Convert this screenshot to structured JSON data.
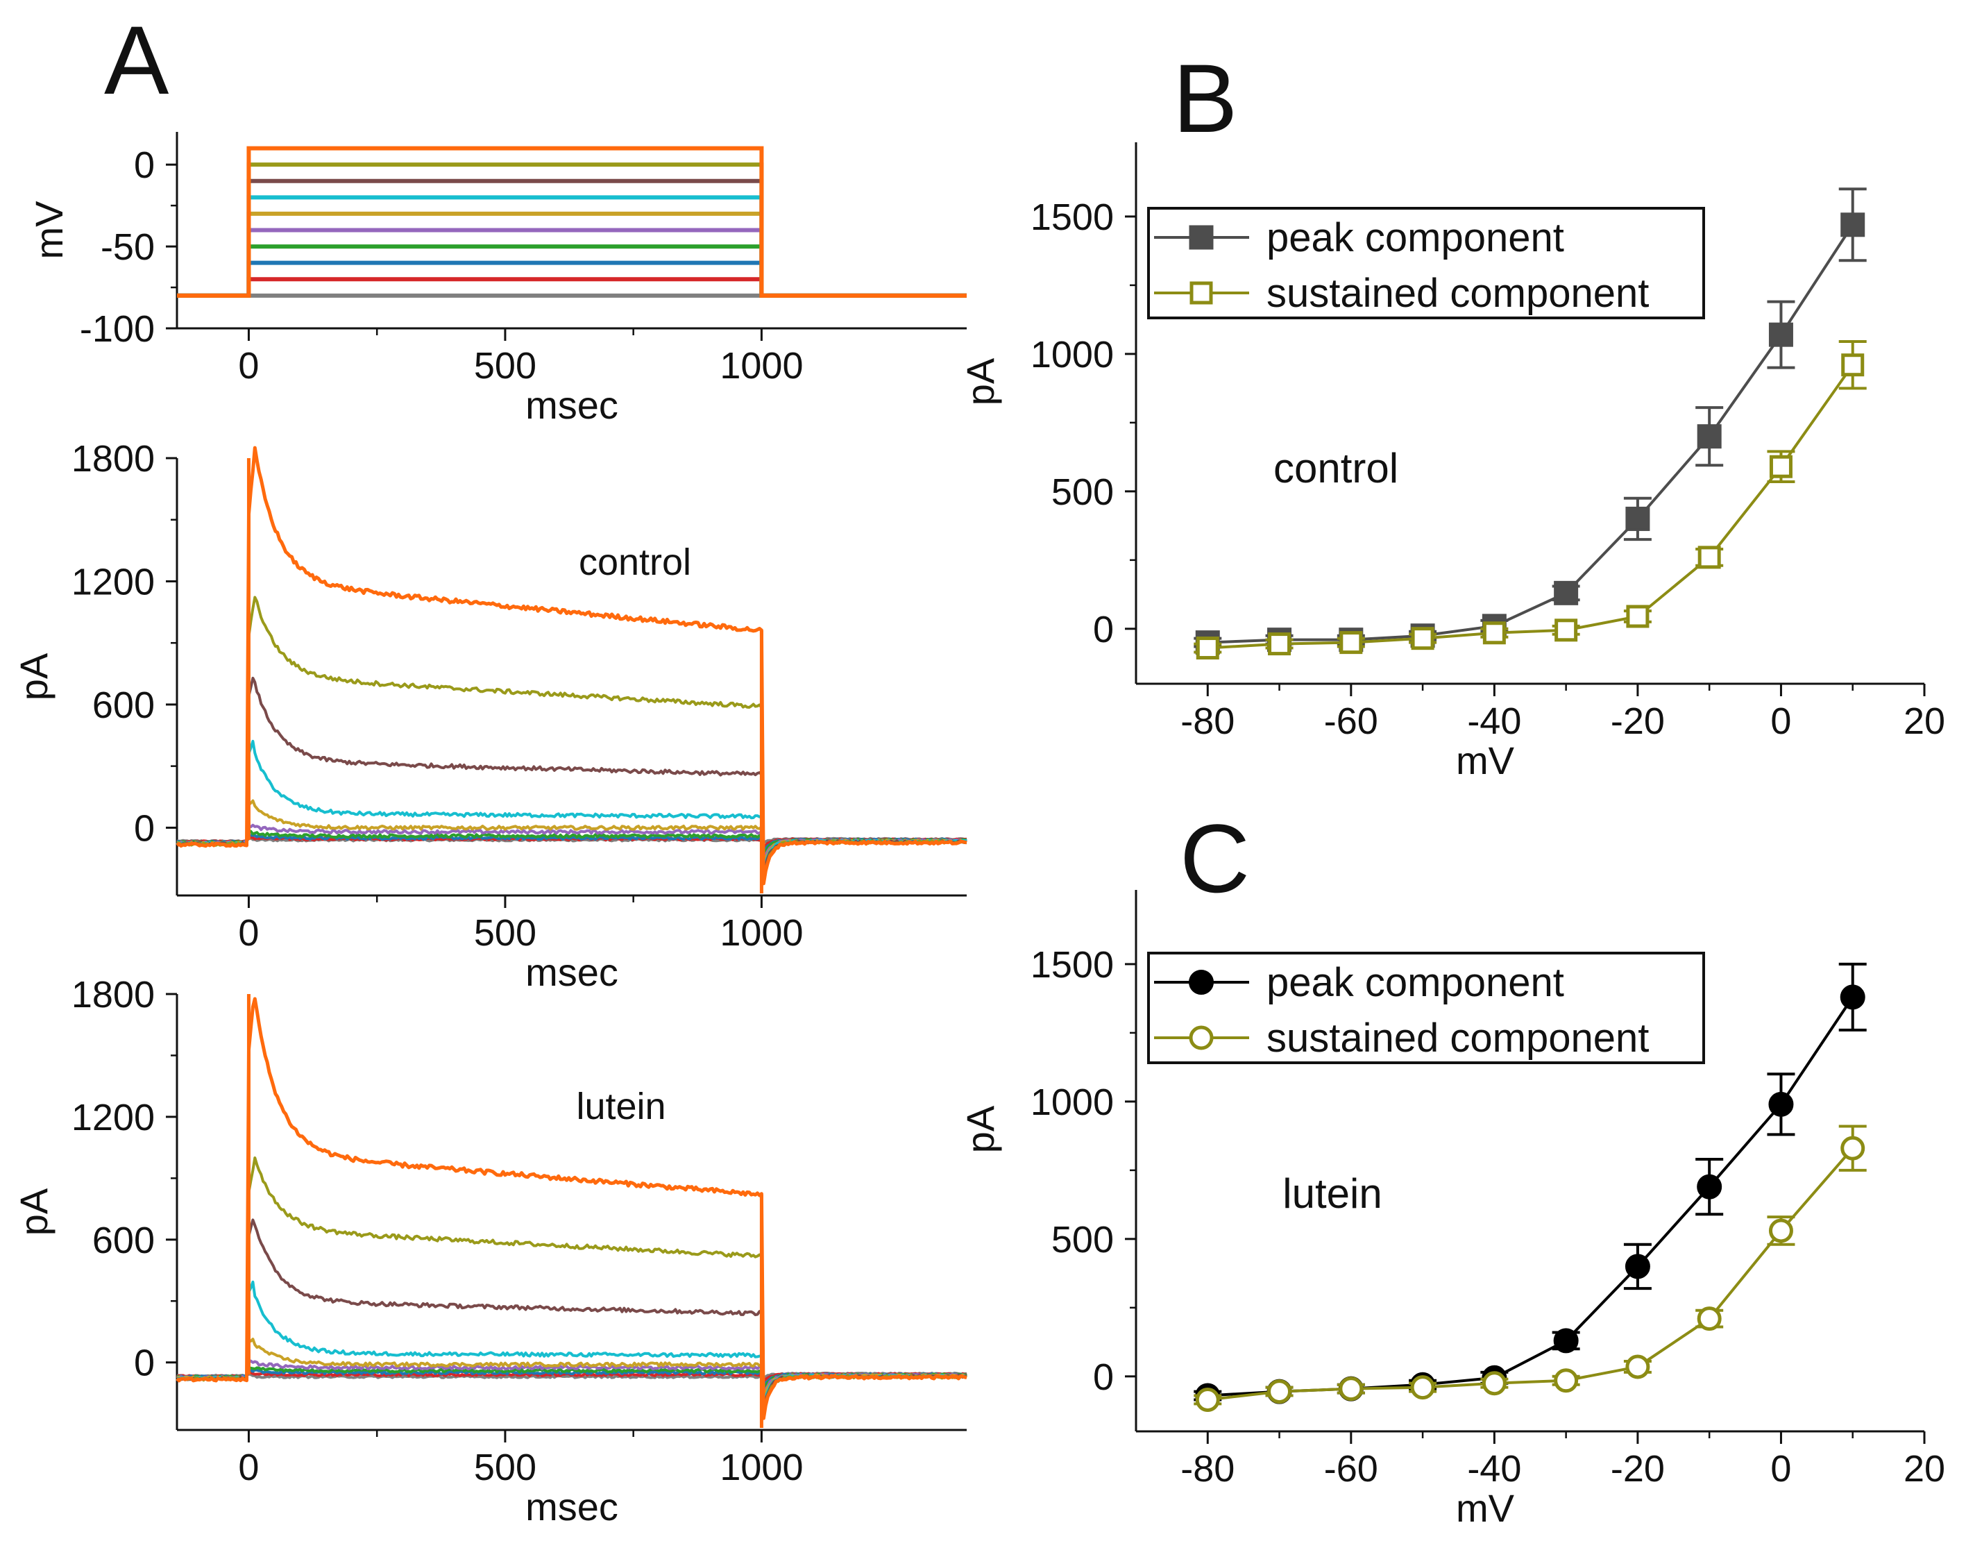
{
  "panel_letters": {
    "A": "A",
    "B": "B",
    "C": "C"
  },
  "chart_data": [
    {
      "id": "A1",
      "type": "line",
      "title": "",
      "xlabel": "msec",
      "ylabel": "mV",
      "xlim": [
        -140,
        1400
      ],
      "ylim": [
        -100,
        20
      ],
      "xticks": [
        0,
        500,
        1000
      ],
      "yticks": [
        0,
        -50,
        -100
      ],
      "xtick_labels": [
        "0",
        "500",
        "1000"
      ],
      "ytick_labels": [
        "0",
        "-50",
        "-100"
      ],
      "holding_mV": -80,
      "step_start_ms": 0,
      "step_end_ms": 1000,
      "series": [
        {
          "name": "-80 mV",
          "level": -80,
          "color": "#7f7f7f"
        },
        {
          "name": "-70 mV",
          "level": -70,
          "color": "#d62728"
        },
        {
          "name": "-60 mV",
          "level": -60,
          "color": "#1f77b4"
        },
        {
          "name": "-50 mV",
          "level": -50,
          "color": "#2ca02c"
        },
        {
          "name": "-40 mV",
          "level": -40,
          "color": "#9467bd"
        },
        {
          "name": "-30 mV",
          "level": -30,
          "color": "#c9a227"
        },
        {
          "name": "-20 mV",
          "level": -20,
          "color": "#17becf"
        },
        {
          "name": "-10 mV",
          "level": -10,
          "color": "#7a4a4a"
        },
        {
          "name": "0 mV",
          "level": 0,
          "color": "#9a9a1a"
        },
        {
          "name": "10 mV",
          "level": 10,
          "color": "#ff6a0d"
        }
      ]
    },
    {
      "id": "A2",
      "type": "line",
      "annotation": "control",
      "xlabel": "msec",
      "ylabel": "pA",
      "xlim": [
        -140,
        1400
      ],
      "ylim": [
        -330,
        1800
      ],
      "xticks": [
        0,
        500,
        1000
      ],
      "yticks": [
        0,
        600,
        1200,
        1800
      ],
      "xtick_labels": [
        "0",
        "500",
        "1000"
      ],
      "ytick_labels": [
        "0",
        "600",
        "1200",
        "1800"
      ],
      "series": [
        {
          "name": "-80 mV",
          "color": "#7f7f7f",
          "peak": -60,
          "sustained": -60
        },
        {
          "name": "-70 mV",
          "color": "#d62728",
          "peak": -50,
          "sustained": -55
        },
        {
          "name": "-60 mV",
          "color": "#1f77b4",
          "peak": -40,
          "sustained": -50
        },
        {
          "name": "-50 mV",
          "color": "#2ca02c",
          "peak": -25,
          "sustained": -40
        },
        {
          "name": "-40 mV",
          "color": "#9467bd",
          "peak": 10,
          "sustained": -20
        },
        {
          "name": "-30 mV",
          "color": "#c9a227",
          "peak": 130,
          "sustained": 0
        },
        {
          "name": "-20 mV",
          "color": "#17becf",
          "peak": 430,
          "sustained": 55
        },
        {
          "name": "-10 mV",
          "color": "#7a4a4a",
          "peak": 750,
          "sustained": 260
        },
        {
          "name": "0 mV",
          "color": "#9a9a1a",
          "peak": 1100,
          "sustained": 590
        },
        {
          "name": "10 mV",
          "color": "#ff6a0d",
          "peak": 1800,
          "sustained": 960
        }
      ]
    },
    {
      "id": "A3",
      "type": "line",
      "annotation": "lutein",
      "xlabel": "msec",
      "ylabel": "pA",
      "xlim": [
        -140,
        1400
      ],
      "ylim": [
        -330,
        1800
      ],
      "xticks": [
        0,
        500,
        1000
      ],
      "yticks": [
        0,
        600,
        1200,
        1800
      ],
      "xtick_labels": [
        "0",
        "500",
        "1000"
      ],
      "ytick_labels": [
        "0",
        "600",
        "1200",
        "1800"
      ],
      "series": [
        {
          "name": "-80 mV",
          "color": "#7f7f7f",
          "peak": -70,
          "sustained": -70
        },
        {
          "name": "-70 mV",
          "color": "#d62728",
          "peak": -55,
          "sustained": -60
        },
        {
          "name": "-60 mV",
          "color": "#1f77b4",
          "peak": -40,
          "sustained": -50
        },
        {
          "name": "-50 mV",
          "color": "#2ca02c",
          "peak": -25,
          "sustained": -40
        },
        {
          "name": "-40 mV",
          "color": "#9467bd",
          "peak": 5,
          "sustained": -25
        },
        {
          "name": "-30 mV",
          "color": "#c9a227",
          "peak": 120,
          "sustained": -10
        },
        {
          "name": "-20 mV",
          "color": "#17becf",
          "peak": 400,
          "sustained": 35
        },
        {
          "name": "-10 mV",
          "color": "#7a4a4a",
          "peak": 730,
          "sustained": 240
        },
        {
          "name": "0 mV",
          "color": "#9a9a1a",
          "peak": 980,
          "sustained": 520
        },
        {
          "name": "10 mV",
          "color": "#ff6a0d",
          "peak": 1800,
          "sustained": 820
        }
      ]
    },
    {
      "id": "B",
      "type": "line",
      "annotation": "control",
      "xlabel": "mV",
      "ylabel": "pA",
      "xlim": [
        -90,
        20
      ],
      "ylim": [
        -200,
        1770
      ],
      "xticks": [
        -80,
        -60,
        -40,
        -20,
        0,
        20
      ],
      "yticks": [
        0,
        500,
        1000,
        1500
      ],
      "xtick_labels": [
        "-80",
        "-60",
        "-40",
        "-20",
        "0",
        "20"
      ],
      "ytick_labels": [
        "0",
        "500",
        "1000",
        "1500"
      ],
      "x": [
        -80,
        -70,
        -60,
        -50,
        -40,
        -30,
        -20,
        -10,
        0,
        10
      ],
      "legend": "top-left",
      "series": [
        {
          "name": "peak component",
          "marker": "filled-square",
          "color": "#4d4d4d",
          "values": [
            -50,
            -40,
            -40,
            -25,
            10,
            130,
            400,
            700,
            1070,
            1470
          ],
          "errors": [
            15,
            15,
            15,
            15,
            20,
            25,
            75,
            105,
            120,
            130
          ]
        },
        {
          "name": "sustained component",
          "marker": "open-square",
          "color": "#8c8c14",
          "values": [
            -70,
            -55,
            -50,
            -35,
            -15,
            -5,
            45,
            260,
            590,
            960
          ],
          "errors": [
            15,
            15,
            15,
            15,
            15,
            15,
            20,
            30,
            55,
            85
          ]
        }
      ]
    },
    {
      "id": "C",
      "type": "line",
      "annotation": "lutein",
      "xlabel": "mV",
      "ylabel": "pA",
      "xlim": [
        -90,
        20
      ],
      "ylim": [
        -200,
        1770
      ],
      "xticks": [
        -80,
        -60,
        -40,
        -20,
        0,
        20
      ],
      "yticks": [
        0,
        500,
        1000,
        1500
      ],
      "xtick_labels": [
        "-80",
        "-60",
        "-40",
        "-20",
        "0",
        "20"
      ],
      "ytick_labels": [
        "0",
        "500",
        "1000",
        "1500"
      ],
      "x": [
        -80,
        -70,
        -60,
        -50,
        -40,
        -30,
        -20,
        -10,
        0,
        10
      ],
      "legend": "top-left",
      "series": [
        {
          "name": "peak component",
          "marker": "filled-circle",
          "color": "#000000",
          "values": [
            -70,
            -55,
            -45,
            -30,
            -5,
            130,
            400,
            690,
            990,
            1380
          ],
          "errors": [
            15,
            15,
            15,
            15,
            20,
            30,
            80,
            100,
            110,
            120
          ]
        },
        {
          "name": "sustained component",
          "marker": "open-circle",
          "color": "#8c8c14",
          "values": [
            -85,
            -55,
            -45,
            -40,
            -25,
            -15,
            35,
            210,
            530,
            830
          ],
          "errors": [
            15,
            15,
            15,
            15,
            15,
            15,
            20,
            30,
            50,
            80
          ]
        }
      ]
    }
  ]
}
